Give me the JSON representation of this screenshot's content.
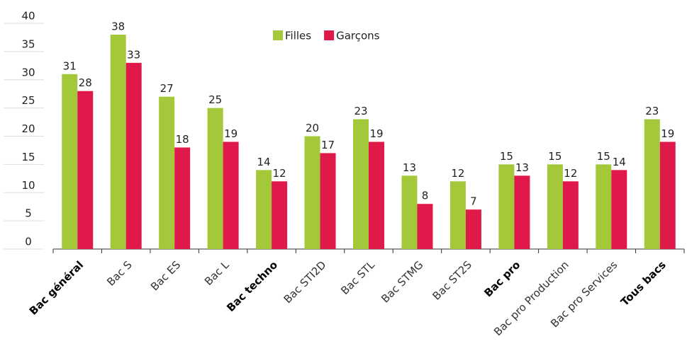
{
  "chart_data": {
    "type": "bar",
    "categories": [
      "Bac général",
      "Bac S",
      "Bac ES",
      "Bac L",
      "Bac techno",
      "Bac STI2D",
      "Bac STL",
      "Bac STMG",
      "Bac ST2S",
      "Bac pro",
      "Bac pro Production",
      "Bac pro Services",
      "Tous bacs"
    ],
    "bold_categories": [
      0,
      4,
      9,
      12
    ],
    "series": [
      {
        "name": "Filles",
        "color": "#a3c83a",
        "values": [
          31,
          38,
          27,
          25,
          14,
          20,
          23,
          13,
          12,
          15,
          15,
          15,
          23
        ]
      },
      {
        "name": "Garçons",
        "color": "#e0194b",
        "values": [
          28,
          33,
          18,
          19,
          12,
          17,
          19,
          8,
          7,
          13,
          12,
          14,
          19
        ]
      }
    ],
    "ylim": [
      0,
      40
    ],
    "yticks": [
      0,
      5,
      10,
      15,
      20,
      25,
      30,
      35,
      40
    ],
    "grid": true,
    "legend": "top"
  }
}
